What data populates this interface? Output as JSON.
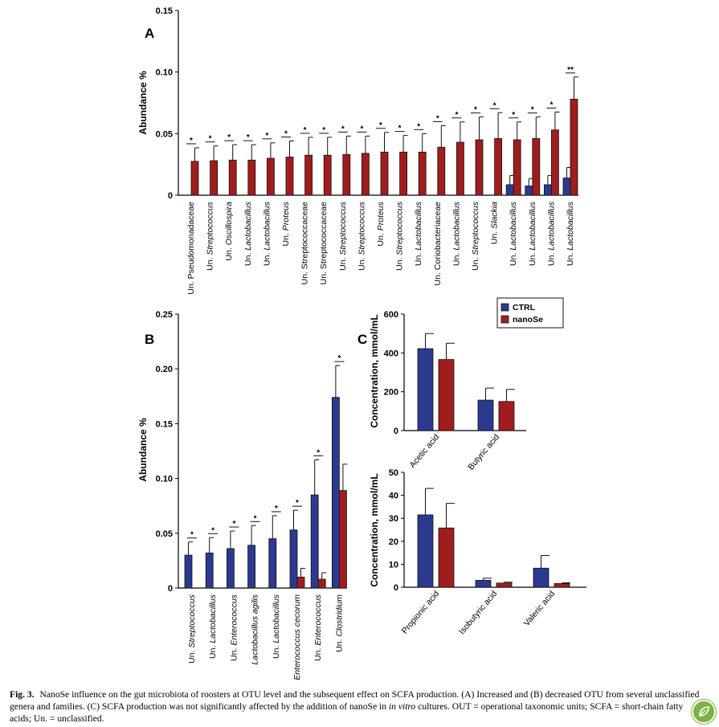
{
  "colors": {
    "ctrl": "#2b3a8f",
    "nanose": "#a11d1d",
    "axis": "#000000"
  },
  "chart_data": [
    {
      "panel": "A",
      "type": "bar",
      "ylabel": "Abundance %",
      "ylim": [
        0,
        0.15
      ],
      "yticks": [
        "0",
        "0.05",
        "0.10",
        "0.15"
      ],
      "ytick_values": [
        0,
        0.05,
        0.1,
        0.15
      ],
      "categories": [
        {
          "pre": "Un. ",
          "name": "Pseudomonadaceae",
          "italic": false
        },
        {
          "pre": "Un. ",
          "name": "Streptococcus",
          "italic": true
        },
        {
          "pre": "Un. ",
          "name": "Oscillospira",
          "italic": true
        },
        {
          "pre": "Un. ",
          "name": "Lactobacillus",
          "italic": true
        },
        {
          "pre": "Un. ",
          "name": "Lactobacillus",
          "italic": true
        },
        {
          "pre": "Un. ",
          "name": "Proteus",
          "italic": true
        },
        {
          "pre": "Un. ",
          "name": "Streptococcaceae",
          "italic": false
        },
        {
          "pre": "Un. ",
          "name": "Streptococcaceae",
          "italic": false
        },
        {
          "pre": "Un. ",
          "name": "Streptococcus",
          "italic": true
        },
        {
          "pre": "Un. ",
          "name": "Streptococcus",
          "italic": true
        },
        {
          "pre": "Un. ",
          "name": "Proteus",
          "italic": true
        },
        {
          "pre": "Un. ",
          "name": "Streptococcus",
          "italic": true
        },
        {
          "pre": "Un. ",
          "name": "Lactobacillus",
          "italic": true
        },
        {
          "pre": "Un. ",
          "name": "Coriobacteriaceae",
          "italic": false
        },
        {
          "pre": "Un. ",
          "name": "Lactobacillus",
          "italic": true
        },
        {
          "pre": "Un. ",
          "name": "Streptococcus",
          "italic": true
        },
        {
          "pre": "Un. ",
          "name": "Slackia",
          "italic": true
        },
        {
          "pre": "Un. ",
          "name": "Lactobacillus",
          "italic": true
        },
        {
          "pre": "Un. ",
          "name": "Lactobacillus",
          "italic": true
        },
        {
          "pre": "Un. ",
          "name": "Lactobacillus",
          "italic": true
        },
        {
          "pre": "Un. ",
          "name": "Lactobacillus",
          "italic": true
        }
      ],
      "series": [
        {
          "key": "ctrl",
          "values": [
            0,
            0,
            0,
            0,
            0,
            0,
            0,
            0,
            0,
            0,
            0,
            0,
            0,
            0,
            0,
            0,
            0,
            0.0085,
            0.0075,
            0.0085,
            0.014
          ],
          "errors": [
            0,
            0,
            0,
            0,
            0,
            0,
            0,
            0,
            0,
            0,
            0,
            0,
            0,
            0,
            0,
            0,
            0,
            0.0075,
            0.006,
            0.0075,
            0.0085
          ]
        },
        {
          "key": "nanose",
          "values": [
            0.0275,
            0.028,
            0.0285,
            0.0285,
            0.03,
            0.031,
            0.0325,
            0.0325,
            0.033,
            0.034,
            0.035,
            0.035,
            0.035,
            0.039,
            0.043,
            0.045,
            0.046,
            0.045,
            0.046,
            0.053,
            0.078
          ],
          "errors": [
            0.011,
            0.012,
            0.0125,
            0.0125,
            0.0125,
            0.013,
            0.0145,
            0.0145,
            0.015,
            0.014,
            0.016,
            0.0135,
            0.015,
            0.0175,
            0.0165,
            0.0185,
            0.021,
            0.0145,
            0.0175,
            0.0145,
            0.018
          ]
        }
      ],
      "significance": [
        "*",
        "*",
        "*",
        "*",
        "*",
        "*",
        "*",
        "*",
        "*",
        "*",
        "*",
        "*",
        "*",
        "*",
        "*",
        "*",
        "*",
        "*",
        "*",
        "*",
        "**"
      ]
    },
    {
      "panel": "B",
      "type": "bar",
      "ylabel": "Abundance %",
      "ylim": [
        0,
        0.25
      ],
      "yticks": [
        "0",
        "0.05",
        "0.10",
        "0.15",
        "0.20",
        "0.25"
      ],
      "ytick_values": [
        0,
        0.05,
        0.1,
        0.15,
        0.2,
        0.25
      ],
      "categories": [
        {
          "pre": "Un. ",
          "name": "Streptococcus",
          "italic": true
        },
        {
          "pre": "Un. ",
          "name": "Lactobacillus",
          "italic": true
        },
        {
          "pre": "Un. ",
          "name": "Enterococcus",
          "italic": true
        },
        {
          "pre": "",
          "name": "Lactobacillus agilis",
          "italic": true
        },
        {
          "pre": "Un. ",
          "name": "Lactobacillus",
          "italic": true
        },
        {
          "pre": "",
          "name": "Enterococcus cecorum",
          "italic": true
        },
        {
          "pre": "Un. ",
          "name": "Enterococcus",
          "italic": true
        },
        {
          "pre": "Un. ",
          "name": "Clostridium",
          "italic": true
        }
      ],
      "series": [
        {
          "key": "ctrl",
          "values": [
            0.03,
            0.032,
            0.036,
            0.039,
            0.045,
            0.053,
            0.085,
            0.174
          ],
          "errors": [
            0.012,
            0.014,
            0.016,
            0.018,
            0.021,
            0.018,
            0.032,
            0.029
          ]
        },
        {
          "key": "nanose",
          "values": [
            0,
            0,
            0,
            0,
            0,
            0.01,
            0.008,
            0.089
          ],
          "errors": [
            0,
            0,
            0,
            0,
            0,
            0.008,
            0.006,
            0.024
          ]
        }
      ],
      "significance": [
        "*",
        "*",
        "*",
        "*",
        "*",
        "*",
        "*",
        "*"
      ]
    },
    {
      "panel": "C",
      "type": "bar",
      "ylabel": "Concentration, mmol/mL",
      "ylim": [
        0,
        600
      ],
      "yticks": [
        "0",
        "200",
        "400",
        "600"
      ],
      "ytick_values": [
        0,
        200,
        400,
        600
      ],
      "categories": [
        {
          "pre": "",
          "name": "Acetic acid",
          "italic": false
        },
        {
          "pre": "",
          "name": "Butyric acid",
          "italic": false
        }
      ],
      "series": [
        {
          "key": "ctrl",
          "values": [
            422,
            157
          ],
          "errors": [
            78,
            62
          ]
        },
        {
          "key": "nanose",
          "values": [
            366,
            150
          ],
          "errors": [
            84,
            62
          ]
        }
      ]
    },
    {
      "panel": "",
      "type": "bar",
      "ylabel": "Concentration, mmol/mL",
      "ylim": [
        0,
        50
      ],
      "yticks": [
        "0",
        "10",
        "20",
        "30",
        "40",
        "50"
      ],
      "ytick_values": [
        0,
        10,
        20,
        30,
        40,
        50
      ],
      "categories": [
        {
          "pre": "",
          "name": "Propionic acid",
          "italic": false
        },
        {
          "pre": "",
          "name": "Isobutyric acid",
          "italic": false
        },
        {
          "pre": "",
          "name": "Valeric acid",
          "italic": false
        }
      ],
      "series": [
        {
          "key": "ctrl",
          "values": [
            31.5,
            3.0,
            8.3
          ],
          "errors": [
            11.5,
            0.9,
            5.5
          ]
        },
        {
          "key": "nanose",
          "values": [
            25.8,
            1.8,
            1.6
          ],
          "errors": [
            10.7,
            0.4,
            0.3
          ]
        }
      ]
    }
  ],
  "legend": {
    "ctrl": "CTRL",
    "nanose": "nanoSe"
  },
  "caption": {
    "label": "Fig. 3.",
    "text_a": "NanoSe influence on the gut microbiota of roosters at OTU level and the subsequent effect on SCFA production. (A) Increased and (B) decreased OTU from several unclassified genera and families. (C) SCFA production was not significantly affected by the addition of nanoSe in ",
    "text_italic": "in vitro",
    "text_b": " cultures. OUT = operational taxonomic units; SCFA = short-chain fatty acids; Un. = unclassified."
  }
}
